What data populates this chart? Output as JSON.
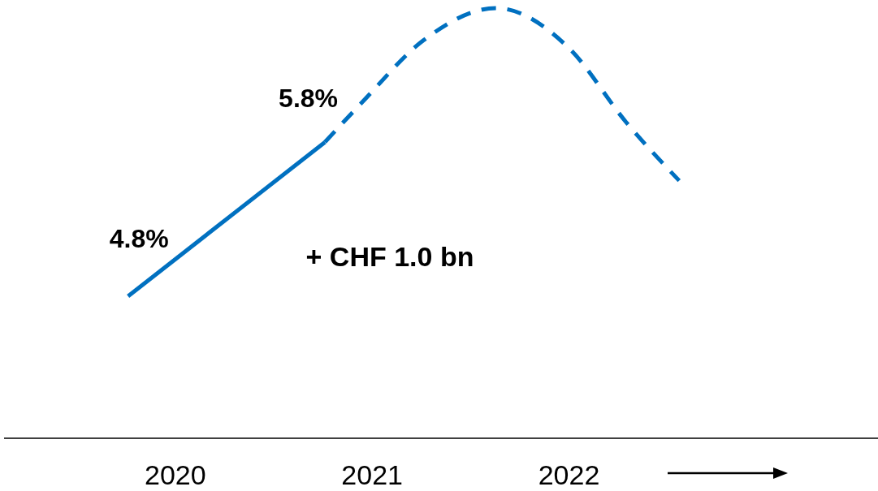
{
  "chart_data": {
    "type": "line",
    "xlim": [
      2019.13,
      2023.57
    ],
    "xticks": [
      2020,
      2021,
      2022
    ],
    "series": [
      {
        "color": "#0070c0",
        "line_style": "solid",
        "x": [
          2019.76,
          2020.76
        ],
        "values": [
          4.8,
          5.8
        ],
        "value_labels": [
          "4.8%",
          "5.8%"
        ]
      },
      {
        "color": "#0070c0",
        "line_style": "dashed",
        "x": [
          2020.76,
          2020.95,
          2021.26,
          2021.63,
          2022.0,
          2022.29,
          2022.56
        ],
        "values": [
          5.8,
          6.06,
          6.46,
          6.67,
          6.41,
          5.93,
          5.55
        ]
      }
    ],
    "annotations": [
      "+ CHF 1.0 bn"
    ],
    "grid": false
  }
}
